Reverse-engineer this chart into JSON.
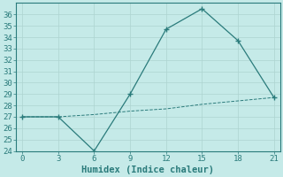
{
  "xlabel": "Humidex (Indice chaleur)",
  "x": [
    0,
    3,
    6,
    9,
    12,
    15,
    18,
    21
  ],
  "line1_y": [
    27,
    27,
    24,
    29,
    34.7,
    36.5,
    33.7,
    28.7
  ],
  "line2_y": [
    27,
    27,
    27.2,
    27.5,
    27.7,
    28.1,
    28.4,
    28.7
  ],
  "line_color": "#2a7b7b",
  "bg_color": "#c5eae8",
  "grid_color": "#aed4d0",
  "ylim": [
    24,
    37
  ],
  "xlim": [
    -0.5,
    21.5
  ],
  "yticks": [
    24,
    25,
    26,
    27,
    28,
    29,
    30,
    31,
    32,
    33,
    34,
    35,
    36
  ],
  "xticks": [
    0,
    3,
    6,
    9,
    12,
    15,
    18,
    21
  ],
  "tick_fontsize": 6.5,
  "label_fontsize": 7.5
}
